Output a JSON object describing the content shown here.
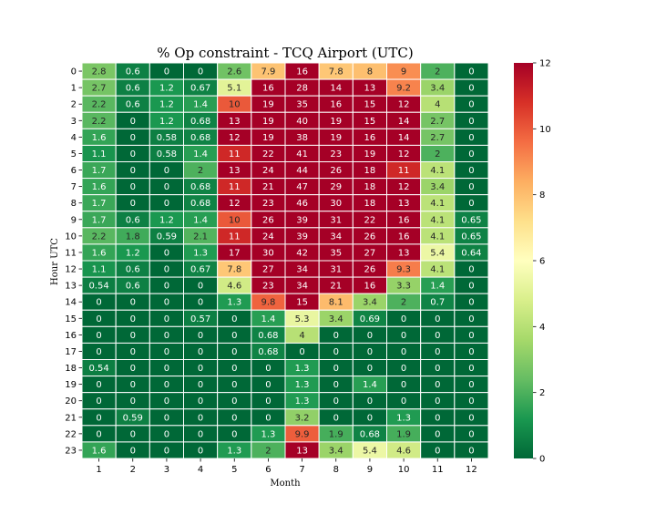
{
  "chart_data": {
    "type": "heatmap",
    "title": "% Op constraint - TCQ Airport (UTC)",
    "xlabel": "Month",
    "ylabel": "Hour UTC",
    "x_categories": [
      "1",
      "2",
      "3",
      "4",
      "5",
      "6",
      "7",
      "8",
      "9",
      "10",
      "11",
      "12"
    ],
    "y_categories": [
      "0",
      "1",
      "2",
      "3",
      "4",
      "5",
      "6",
      "7",
      "8",
      "9",
      "10",
      "11",
      "12",
      "13",
      "14",
      "15",
      "16",
      "17",
      "18",
      "19",
      "20",
      "21",
      "22",
      "23"
    ],
    "values": [
      [
        "2.8",
        "0.6",
        "0",
        "0",
        "2.6",
        "7.9",
        "16",
        "7.8",
        "8",
        "9",
        "2",
        "0"
      ],
      [
        "2.7",
        "0.6",
        "1.2",
        "0.67",
        "5.1",
        "16",
        "28",
        "14",
        "13",
        "9.2",
        "3.4",
        "0"
      ],
      [
        "2.2",
        "0.6",
        "1.2",
        "1.4",
        "10",
        "19",
        "35",
        "16",
        "15",
        "12",
        "4",
        "0"
      ],
      [
        "2.2",
        "0",
        "1.2",
        "0.68",
        "13",
        "19",
        "40",
        "19",
        "15",
        "14",
        "2.7",
        "0"
      ],
      [
        "1.6",
        "0",
        "0.58",
        "0.68",
        "12",
        "19",
        "38",
        "19",
        "16",
        "14",
        "2.7",
        "0"
      ],
      [
        "1.1",
        "0",
        "0.58",
        "1.4",
        "11",
        "22",
        "41",
        "23",
        "19",
        "12",
        "2",
        "0"
      ],
      [
        "1.7",
        "0",
        "0",
        "2",
        "13",
        "24",
        "44",
        "26",
        "18",
        "11",
        "4.1",
        "0"
      ],
      [
        "1.6",
        "0",
        "0",
        "0.68",
        "11",
        "21",
        "47",
        "29",
        "18",
        "12",
        "3.4",
        "0"
      ],
      [
        "1.7",
        "0",
        "0",
        "0.68",
        "12",
        "23",
        "46",
        "30",
        "18",
        "13",
        "4.1",
        "0"
      ],
      [
        "1.7",
        "0.6",
        "1.2",
        "1.4",
        "10",
        "26",
        "39",
        "31",
        "22",
        "16",
        "4.1",
        "0.65"
      ],
      [
        "2.2",
        "1.8",
        "0.59",
        "2.1",
        "11",
        "24",
        "39",
        "34",
        "26",
        "16",
        "4.1",
        "0.65"
      ],
      [
        "1.6",
        "1.2",
        "0",
        "1.3",
        "17",
        "30",
        "42",
        "35",
        "27",
        "13",
        "5.4",
        "0.64"
      ],
      [
        "1.1",
        "0.6",
        "0",
        "0.67",
        "7.8",
        "27",
        "34",
        "31",
        "26",
        "9.3",
        "4.1",
        "0"
      ],
      [
        "0.54",
        "0.6",
        "0",
        "0",
        "4.6",
        "23",
        "34",
        "21",
        "16",
        "3.3",
        "1.4",
        "0"
      ],
      [
        "0",
        "0",
        "0",
        "0",
        "1.3",
        "9.8",
        "15",
        "8.1",
        "3.4",
        "2",
        "0.7",
        "0"
      ],
      [
        "0",
        "0",
        "0",
        "0.57",
        "0",
        "1.4",
        "5.3",
        "3.4",
        "0.69",
        "0",
        "0",
        "0"
      ],
      [
        "0",
        "0",
        "0",
        "0",
        "0",
        "0.68",
        "4",
        "0",
        "0",
        "0",
        "0",
        "0"
      ],
      [
        "0",
        "0",
        "0",
        "0",
        "0",
        "0.68",
        "0",
        "0",
        "0",
        "0",
        "0",
        "0"
      ],
      [
        "0.54",
        "0",
        "0",
        "0",
        "0",
        "0",
        "1.3",
        "0",
        "0",
        "0",
        "0",
        "0"
      ],
      [
        "0",
        "0",
        "0",
        "0",
        "0",
        "0",
        "1.3",
        "0",
        "1.4",
        "0",
        "0",
        "0"
      ],
      [
        "0",
        "0",
        "0",
        "0",
        "0",
        "0",
        "1.3",
        "0",
        "0",
        "0",
        "0",
        "0"
      ],
      [
        "0",
        "0.59",
        "0",
        "0",
        "0",
        "0",
        "3.2",
        "0",
        "0",
        "1.3",
        "0",
        "0"
      ],
      [
        "0",
        "0",
        "0",
        "0",
        "0",
        "1.3",
        "9.9",
        "1.9",
        "0.68",
        "1.9",
        "0",
        "0"
      ],
      [
        "1.6",
        "0",
        "0",
        "0",
        "1.3",
        "2",
        "13",
        "3.4",
        "5.4",
        "4.6",
        "0",
        "0"
      ]
    ],
    "color_scale": {
      "colormap": "RdYlGn_r",
      "vmin": 0,
      "vmax": 12,
      "ticks": [
        "0",
        "2",
        "4",
        "6",
        "8",
        "10",
        "12"
      ],
      "stops": [
        "#006837",
        "#1a9850",
        "#66bd63",
        "#a6d96a",
        "#d9ef8b",
        "#ffffbf",
        "#fee08b",
        "#fdae61",
        "#f46d43",
        "#d73027",
        "#a50026"
      ]
    },
    "grid_lines_color": "#ffffff",
    "legend_placement": "right"
  }
}
